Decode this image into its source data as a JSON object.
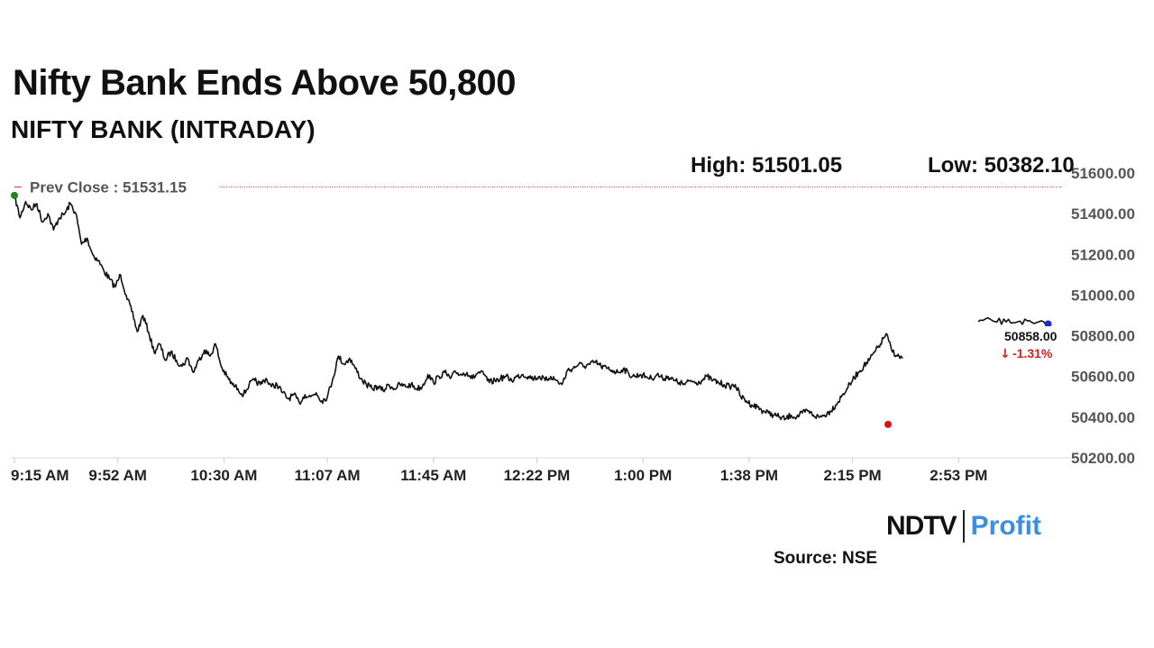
{
  "header": {
    "title": "Nifty Bank Ends Above 50,800",
    "subtitle": "NIFTY BANK (INTRADAY)"
  },
  "stats": {
    "high_label": "High: 51501.05",
    "low_label": "Low: 50382.10"
  },
  "chart_data": {
    "type": "line",
    "title": "NIFTY BANK (INTRADAY)",
    "xlabel": "",
    "ylabel": "",
    "x_tick_labels": [
      "9:15 AM",
      "9:52 AM",
      "10:30 AM",
      "11:07 AM",
      "11:45 AM",
      "12:22 PM",
      "1:00 PM",
      "1:38 PM",
      "2:15 PM",
      "2:53 PM"
    ],
    "y_tick_labels": [
      "51600.00",
      "51400.00",
      "51200.00",
      "51000.00",
      "50800.00",
      "50600.00",
      "50400.00",
      "50200.00"
    ],
    "ylim": [
      50200,
      51600
    ],
    "grid": false,
    "prev_close_label": "Prev Close : 51531.15",
    "prev_close_value": 51531.15,
    "last_value_label": "50858.00",
    "change_label": "-1.31%",
    "change_arrow": "↓",
    "series": [
      {
        "points": [
          [
            "9:15 AM",
            51490
          ],
          [
            "9:17 AM",
            51380
          ],
          [
            "9:19 AM",
            51460
          ],
          [
            "9:21 AM",
            51420
          ],
          [
            "9:23 AM",
            51450
          ],
          [
            "9:25 AM",
            51360
          ],
          [
            "9:27 AM",
            51400
          ],
          [
            "9:29 AM",
            51320
          ],
          [
            "9:31 AM",
            51380
          ],
          [
            "9:33 AM",
            51400
          ],
          [
            "9:35 AM",
            51450
          ],
          [
            "9:37 AM",
            51400
          ],
          [
            "9:39 AM",
            51250
          ],
          [
            "9:41 AM",
            51280
          ],
          [
            "9:43 AM",
            51200
          ],
          [
            "9:45 AM",
            51170
          ],
          [
            "9:47 AM",
            51120
          ],
          [
            "9:49 AM",
            51080
          ],
          [
            "9:51 AM",
            51040
          ],
          [
            "9:53 AM",
            51100
          ],
          [
            "9:55 AM",
            51000
          ],
          [
            "9:57 AM",
            50920
          ],
          [
            "9:59 AM",
            50820
          ],
          [
            "10:01 AM",
            50900
          ],
          [
            "10:03 AM",
            50820
          ],
          [
            "10:05 AM",
            50720
          ],
          [
            "10:07 AM",
            50760
          ],
          [
            "10:09 AM",
            50680
          ],
          [
            "10:11 AM",
            50720
          ],
          [
            "10:13 AM",
            50680
          ],
          [
            "10:15 AM",
            50650
          ],
          [
            "10:17 AM",
            50690
          ],
          [
            "10:19 AM",
            50620
          ],
          [
            "10:21 AM",
            50680
          ],
          [
            "10:23 AM",
            50730
          ],
          [
            "10:25 AM",
            50700
          ],
          [
            "10:27 AM",
            50760
          ],
          [
            "10:29 AM",
            50650
          ],
          [
            "10:31 AM",
            50600
          ],
          [
            "10:33 AM",
            50560
          ],
          [
            "10:35 AM",
            50540
          ],
          [
            "10:37 AM",
            50510
          ],
          [
            "10:39 AM",
            50560
          ],
          [
            "10:41 AM",
            50580
          ],
          [
            "10:43 AM",
            50560
          ],
          [
            "10:45 AM",
            50590
          ],
          [
            "10:47 AM",
            50550
          ],
          [
            "10:49 AM",
            50560
          ],
          [
            "10:51 AM",
            50520
          ],
          [
            "10:53 AM",
            50490
          ],
          [
            "10:55 AM",
            50510
          ],
          [
            "10:57 AM",
            50470
          ],
          [
            "10:59 AM",
            50510
          ],
          [
            "11:01 AM",
            50500
          ],
          [
            "11:03 AM",
            50520
          ],
          [
            "11:05 AM",
            50480
          ],
          [
            "11:07 AM",
            50500
          ],
          [
            "11:09 AM",
            50590
          ],
          [
            "11:11 AM",
            50700
          ],
          [
            "11:13 AM",
            50660
          ],
          [
            "11:15 AM",
            50690
          ],
          [
            "11:17 AM",
            50640
          ],
          [
            "11:19 AM",
            50590
          ],
          [
            "11:21 AM",
            50560
          ],
          [
            "11:23 AM",
            50540
          ],
          [
            "11:25 AM",
            50550
          ],
          [
            "11:27 AM",
            50530
          ],
          [
            "11:29 AM",
            50560
          ],
          [
            "11:31 AM",
            50540
          ],
          [
            "11:33 AM",
            50560
          ],
          [
            "11:35 AM",
            50550
          ],
          [
            "11:37 AM",
            50560
          ],
          [
            "11:39 AM",
            50540
          ],
          [
            "11:41 AM",
            50550
          ],
          [
            "11:43 AM",
            50610
          ],
          [
            "11:45 AM",
            50570
          ],
          [
            "11:47 AM",
            50600
          ],
          [
            "11:49 AM",
            50620
          ],
          [
            "11:51 AM",
            50590
          ],
          [
            "11:53 AM",
            50620
          ],
          [
            "11:55 AM",
            50610
          ],
          [
            "11:57 AM",
            50620
          ],
          [
            "11:59 AM",
            50590
          ],
          [
            "12:01 PM",
            50620
          ],
          [
            "12:03 PM",
            50610
          ],
          [
            "12:05 PM",
            50570
          ],
          [
            "12:07 PM",
            50580
          ],
          [
            "12:09 PM",
            50590
          ],
          [
            "12:11 PM",
            50600
          ],
          [
            "12:13 PM",
            50580
          ],
          [
            "12:15 PM",
            50600
          ],
          [
            "12:17 PM",
            50610
          ],
          [
            "12:19 PM",
            50600
          ],
          [
            "12:21 PM",
            50590
          ],
          [
            "12:23 PM",
            50600
          ],
          [
            "12:25 PM",
            50580
          ],
          [
            "12:27 PM",
            50600
          ],
          [
            "12:29 PM",
            50580
          ],
          [
            "12:31 PM",
            50560
          ],
          [
            "12:33 PM",
            50630
          ],
          [
            "12:35 PM",
            50640
          ],
          [
            "12:37 PM",
            50660
          ],
          [
            "12:39 PM",
            50650
          ],
          [
            "12:41 PM",
            50660
          ],
          [
            "12:43 PM",
            50670
          ],
          [
            "12:45 PM",
            50650
          ],
          [
            "12:47 PM",
            50640
          ],
          [
            "12:49 PM",
            50630
          ],
          [
            "12:51 PM",
            50620
          ],
          [
            "12:53 PM",
            50640
          ],
          [
            "12:55 PM",
            50610
          ],
          [
            "12:57 PM",
            50600
          ],
          [
            "12:59 PM",
            50610
          ],
          [
            "1:01 PM",
            50600
          ],
          [
            "1:03 PM",
            50590
          ],
          [
            "1:05 PM",
            50610
          ],
          [
            "1:07 PM",
            50590
          ],
          [
            "1:09 PM",
            50600
          ],
          [
            "1:11 PM",
            50580
          ],
          [
            "1:13 PM",
            50570
          ],
          [
            "1:15 PM",
            50560
          ],
          [
            "1:17 PM",
            50580
          ],
          [
            "1:19 PM",
            50570
          ],
          [
            "1:21 PM",
            50580
          ],
          [
            "1:23 PM",
            50600
          ],
          [
            "1:25 PM",
            50580
          ],
          [
            "1:27 PM",
            50570
          ],
          [
            "1:29 PM",
            50560
          ],
          [
            "1:31 PM",
            50550
          ],
          [
            "1:33 PM",
            50560
          ],
          [
            "1:35 PM",
            50500
          ],
          [
            "1:37 PM",
            50480
          ],
          [
            "1:39 PM",
            50460
          ],
          [
            "1:41 PM",
            50450
          ],
          [
            "1:43 PM",
            50430
          ],
          [
            "1:45 PM",
            50420
          ],
          [
            "1:47 PM",
            50410
          ],
          [
            "1:49 PM",
            50400
          ],
          [
            "1:51 PM",
            50390
          ],
          [
            "1:53 PM",
            50410
          ],
          [
            "1:55 PM",
            50400
          ],
          [
            "1:57 PM",
            50420
          ],
          [
            "1:59 PM",
            50430
          ],
          [
            "2:01 PM",
            50410
          ],
          [
            "2:03 PM",
            50400
          ],
          [
            "2:05 PM",
            50410
          ],
          [
            "2:07 PM",
            50430
          ],
          [
            "2:09 PM",
            50460
          ],
          [
            "2:11 PM",
            50500
          ],
          [
            "2:13 PM",
            50540
          ],
          [
            "2:15 PM",
            50580
          ],
          [
            "2:17 PM",
            50620
          ],
          [
            "2:19 PM",
            50650
          ],
          [
            "2:21 PM",
            50680
          ],
          [
            "2:23 PM",
            50720
          ],
          [
            "2:25 PM",
            50760
          ],
          [
            "2:27 PM",
            50810
          ],
          [
            "2:29 PM",
            50730
          ],
          [
            "2:31 PM",
            50700
          ],
          [
            "2:33 PM",
            50690
          ]
        ]
      },
      {
        "points": [
          [
            "3:00 PM",
            50870
          ],
          [
            "3:05 PM",
            50875
          ],
          [
            "3:10 PM",
            50868
          ],
          [
            "3:15 PM",
            50872
          ],
          [
            "3:20 PM",
            50860
          ],
          [
            "3:25 PM",
            50858
          ]
        ]
      }
    ],
    "low_marker_value": 50382.1,
    "colors": {
      "line": "#111111",
      "prev_close": "#e03030",
      "start_dot": "#1a8a1a",
      "low_dot": "#e01010",
      "end_dot": "#1a2ad0",
      "change": "#d42020",
      "axis_text": "#555555"
    }
  },
  "footer": {
    "brand_ndtv": "NDTV",
    "brand_profit": "Profit",
    "source": "Source: NSE"
  }
}
